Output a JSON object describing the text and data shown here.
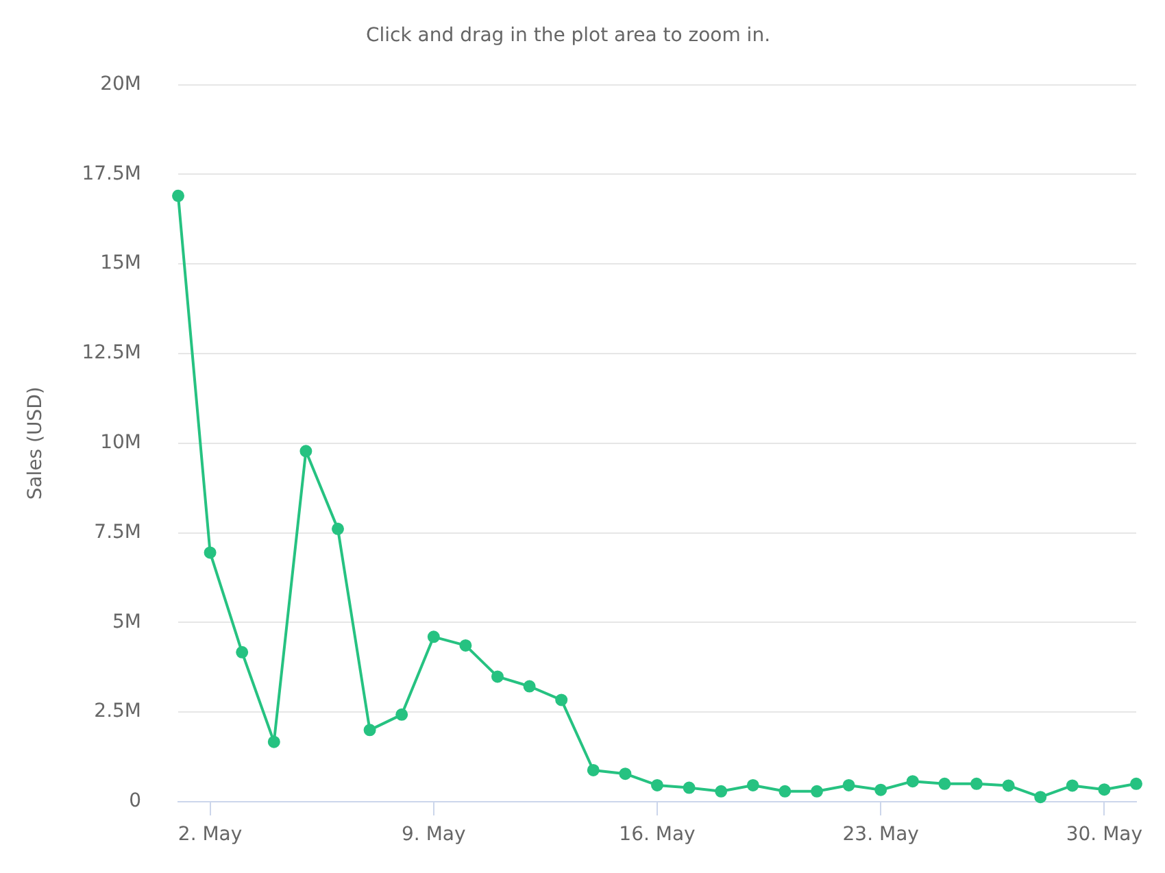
{
  "chart_data": {
    "type": "line",
    "subtitle": "Click and drag in the plot area to zoom in.",
    "ylabel": "Sales (USD)",
    "x": [
      "--05-01",
      "--05-02",
      "--05-03",
      "--05-04",
      "--05-05",
      "--05-06",
      "--05-07",
      "--05-08",
      "--05-09",
      "--05-10",
      "--05-11",
      "--05-12",
      "--05-13",
      "--05-14",
      "--05-15",
      "--05-16",
      "--05-17",
      "--05-18",
      "--05-19",
      "--05-20",
      "--05-21",
      "--05-22",
      "--05-23",
      "--05-24",
      "--05-25",
      "--05-26",
      "--05-27",
      "--05-28",
      "--05-29",
      "--05-30",
      "--05-31"
    ],
    "values": [
      16900000,
      6950000,
      4170000,
      1670000,
      9780000,
      7610000,
      2000000,
      2430000,
      4600000,
      4360000,
      3490000,
      3220000,
      2840000,
      880000,
      780000,
      460000,
      390000,
      290000,
      460000,
      290000,
      290000,
      460000,
      330000,
      570000,
      500000,
      500000,
      450000,
      130000,
      450000,
      340000,
      500000
    ],
    "color": "#26c281",
    "xlim": [
      "--05-01",
      "--05-31"
    ],
    "xticks": [
      {
        "value": "--05-02",
        "label": "2. May"
      },
      {
        "value": "--05-09",
        "label": "9. May"
      },
      {
        "value": "--05-16",
        "label": "16. May"
      },
      {
        "value": "--05-23",
        "label": "23. May"
      },
      {
        "value": "--05-30",
        "label": "30. May"
      }
    ],
    "ylim": [
      0,
      20000000
    ],
    "yticks": [
      0,
      {
        "value": 2500000,
        "label": "2.5M"
      },
      {
        "value": 5000000,
        "label": "5M"
      },
      {
        "value": 7500000,
        "label": "7.5M"
      },
      {
        "value": 10000000,
        "label": "10M"
      },
      {
        "value": 12500000,
        "label": "12.5M"
      },
      {
        "value": 15000000,
        "label": "15M"
      },
      {
        "value": 17500000,
        "label": "17.5M"
      },
      {
        "value": 20000000,
        "label": "20M"
      }
    ],
    "grid": "y",
    "marker": "circle",
    "line_style": "solid"
  }
}
